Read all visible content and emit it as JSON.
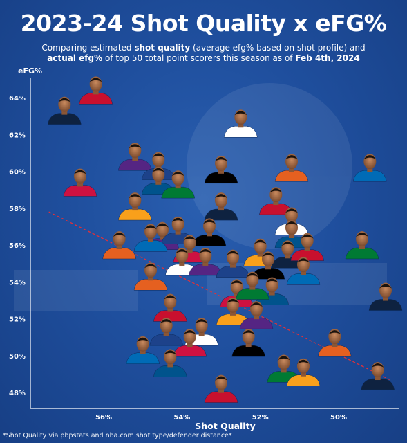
{
  "header": {
    "title": "2023-24 Shot Quality x eFG%",
    "subtitle_parts": [
      {
        "text": "Comparing estimated ",
        "bold": false
      },
      {
        "text": "shot quality",
        "bold": true
      },
      {
        "text": " (average efg% based on shot profile) and ",
        "bold": false
      },
      {
        "text": "actual efg%",
        "bold": true
      },
      {
        "text": " of top 50 total point scorers this season as of ",
        "bold": false
      },
      {
        "text": "Feb 4th, 2024",
        "bold": true
      }
    ]
  },
  "footnote": "*Shot Quality via pbpstats and nba.com shot type/defender distance*",
  "chart_data": {
    "type": "scatter",
    "xlabel": "Shot Quality",
    "ylabel": "eFG%",
    "x_reversed": true,
    "xlim": [
      57.4,
      48.7
    ],
    "ylim": [
      47.5,
      65.2
    ],
    "x_ticks": [
      56,
      54,
      52,
      50
    ],
    "x_tick_labels": [
      "56%",
      "54%",
      "52%",
      "50%"
    ],
    "y_ticks": [
      48,
      50,
      52,
      54,
      56,
      58,
      60,
      62,
      64
    ],
    "y_tick_labels": [
      "48%",
      "50%",
      "52%",
      "54%",
      "56%",
      "58%",
      "60%",
      "62%",
      "64%"
    ],
    "trendline": {
      "x1": 57.4,
      "y1": 57.8,
      "x2": 48.7,
      "y2": 48.7
    },
    "points": [
      {
        "x": 57.0,
        "y": 63.0
      },
      {
        "x": 56.2,
        "y": 64.1
      },
      {
        "x": 52.5,
        "y": 62.3
      },
      {
        "x": 55.2,
        "y": 60.5
      },
      {
        "x": 54.6,
        "y": 60.0
      },
      {
        "x": 53.0,
        "y": 59.8
      },
      {
        "x": 51.2,
        "y": 59.9
      },
      {
        "x": 49.2,
        "y": 59.9
      },
      {
        "x": 56.6,
        "y": 59.1
      },
      {
        "x": 54.6,
        "y": 59.2
      },
      {
        "x": 54.1,
        "y": 59.0
      },
      {
        "x": 55.2,
        "y": 57.8
      },
      {
        "x": 53.0,
        "y": 57.8
      },
      {
        "x": 51.6,
        "y": 58.1
      },
      {
        "x": 51.2,
        "y": 57.0
      },
      {
        "x": 54.5,
        "y": 56.2
      },
      {
        "x": 54.1,
        "y": 56.5
      },
      {
        "x": 53.3,
        "y": 56.4
      },
      {
        "x": 55.6,
        "y": 55.7
      },
      {
        "x": 54.8,
        "y": 56.1
      },
      {
        "x": 53.8,
        "y": 55.5
      },
      {
        "x": 51.2,
        "y": 56.3
      },
      {
        "x": 49.4,
        "y": 55.7
      },
      {
        "x": 52.0,
        "y": 55.3
      },
      {
        "x": 51.3,
        "y": 55.2
      },
      {
        "x": 50.8,
        "y": 55.6
      },
      {
        "x": 54.0,
        "y": 54.8
      },
      {
        "x": 53.4,
        "y": 54.8
      },
      {
        "x": 52.7,
        "y": 54.7
      },
      {
        "x": 51.8,
        "y": 54.6
      },
      {
        "x": 54.8,
        "y": 54.0
      },
      {
        "x": 50.9,
        "y": 54.3
      },
      {
        "x": 52.6,
        "y": 53.1
      },
      {
        "x": 51.7,
        "y": 53.2
      },
      {
        "x": 52.2,
        "y": 53.5
      },
      {
        "x": 52.7,
        "y": 52.1
      },
      {
        "x": 48.8,
        "y": 52.9
      },
      {
        "x": 54.3,
        "y": 52.3
      },
      {
        "x": 53.5,
        "y": 51.0
      },
      {
        "x": 52.1,
        "y": 51.9
      },
      {
        "x": 54.4,
        "y": 51.0
      },
      {
        "x": 52.3,
        "y": 50.4
      },
      {
        "x": 50.1,
        "y": 50.4
      },
      {
        "x": 55.0,
        "y": 50.0
      },
      {
        "x": 53.8,
        "y": 50.4
      },
      {
        "x": 54.3,
        "y": 49.3
      },
      {
        "x": 51.4,
        "y": 49.0
      },
      {
        "x": 50.9,
        "y": 48.8
      },
      {
        "x": 49.0,
        "y": 48.6
      },
      {
        "x": 53.0,
        "y": 47.9
      }
    ]
  }
}
